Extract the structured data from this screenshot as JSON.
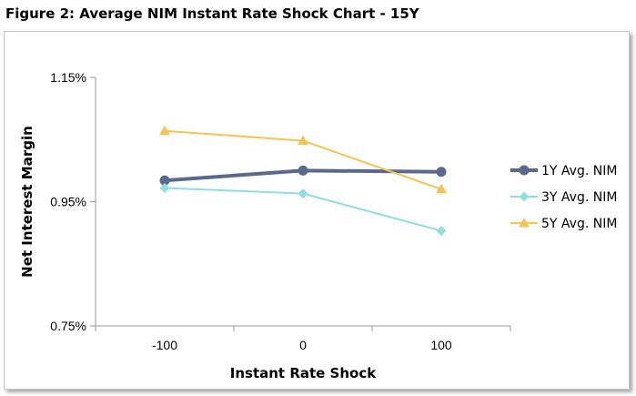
{
  "figure_title": "Figure 2: Average NIM Instant Rate Shock Chart - 15Y",
  "chart_data": {
    "type": "line",
    "title": "",
    "xlabel": "Instant Rate Shock",
    "ylabel": "Net Interest Margin",
    "categories": [
      "-100",
      "0",
      "100"
    ],
    "ylim": [
      0.75,
      1.15
    ],
    "yticks": [
      "0.75%",
      "0.95%",
      "1.15%"
    ],
    "ytick_values": [
      0.75,
      0.95,
      1.15
    ],
    "grid": false,
    "legend_position": "right",
    "series": [
      {
        "name": "1Y Avg. NIM",
        "values": [
          0.984,
          1.0,
          0.998
        ],
        "color": "#5b6a8c",
        "marker": "circle"
      },
      {
        "name": "3Y Avg. NIM",
        "values": [
          0.972,
          0.963,
          0.903
        ],
        "color": "#8fdfe0",
        "marker": "diamond"
      },
      {
        "name": "5Y Avg. NIM",
        "values": [
          1.064,
          1.048,
          0.97
        ],
        "color": "#f6c453",
        "marker": "triangle"
      }
    ]
  }
}
